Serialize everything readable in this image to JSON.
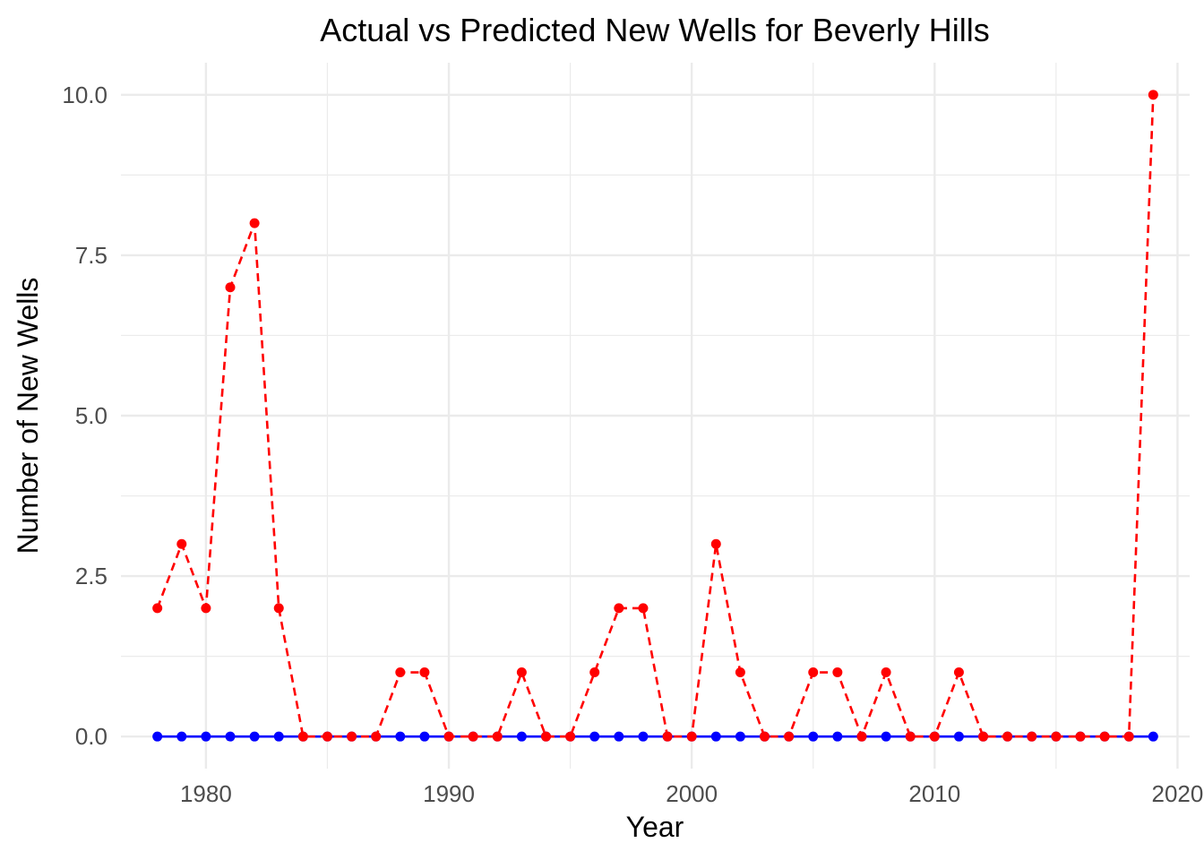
{
  "chart_data": {
    "type": "line",
    "title": "Actual vs Predicted New Wells for Beverly Hills",
    "xlabel": "Year",
    "ylabel": "Number of New Wells",
    "xlim": [
      1976.5,
      2020.5
    ],
    "ylim": [
      -0.5,
      10.5
    ],
    "x_ticks": [
      1980,
      1990,
      2000,
      2010,
      2020
    ],
    "x_tick_labels": [
      "1980",
      "1990",
      "2000",
      "2010",
      "2020"
    ],
    "y_ticks": [
      0,
      2.5,
      5,
      7.5,
      10
    ],
    "y_tick_labels": [
      "0.0",
      "2.5",
      "5.0",
      "7.5",
      "10.0"
    ],
    "grid": true,
    "legend": "none",
    "x": [
      1978,
      1979,
      1980,
      1981,
      1982,
      1983,
      1984,
      1985,
      1986,
      1987,
      1988,
      1989,
      1990,
      1991,
      1992,
      1993,
      1994,
      1995,
      1996,
      1997,
      1998,
      1999,
      2000,
      2001,
      2002,
      2003,
      2004,
      2005,
      2006,
      2007,
      2008,
      2009,
      2010,
      2011,
      2012,
      2013,
      2014,
      2015,
      2016,
      2017,
      2018,
      2019
    ],
    "series": [
      {
        "color": "#0000ff",
        "line_style": "solid",
        "values": [
          0,
          0,
          0,
          0,
          0,
          0,
          0,
          0,
          0,
          0,
          0,
          0,
          0,
          0,
          0,
          0,
          0,
          0,
          0,
          0,
          0,
          0,
          0,
          0,
          0,
          0,
          0,
          0,
          0,
          0,
          0,
          0,
          0,
          0,
          0,
          0,
          0,
          0,
          0,
          0,
          0,
          0
        ]
      },
      {
        "color": "#ff0000",
        "line_style": "dashed",
        "values": [
          2,
          3,
          2,
          7,
          8,
          2,
          0,
          0,
          0,
          0,
          1,
          1,
          0,
          0,
          0,
          1,
          0,
          0,
          1,
          2,
          2,
          0,
          0,
          3,
          1,
          0,
          0,
          1,
          1,
          0,
          1,
          0,
          0,
          1,
          0,
          0,
          0,
          0,
          0,
          0,
          0,
          10
        ]
      }
    ]
  }
}
